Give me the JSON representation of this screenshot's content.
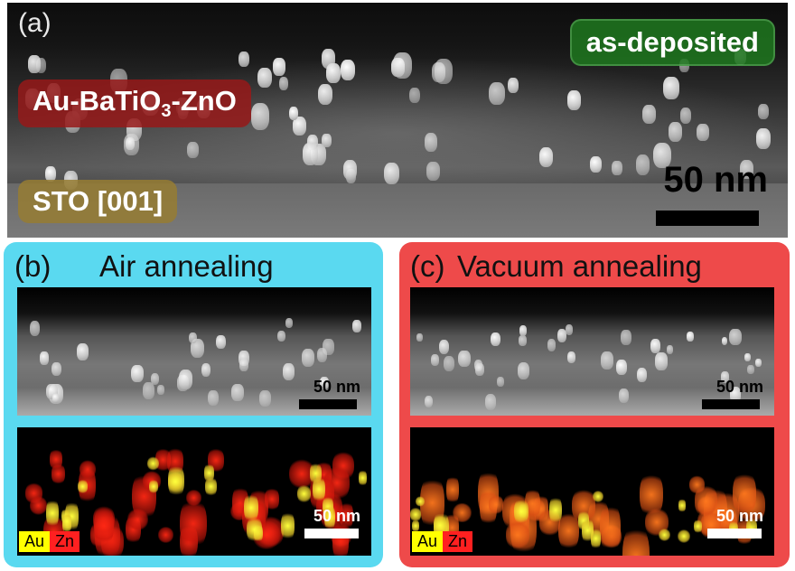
{
  "panel_a": {
    "label": "(a)",
    "state_tag": "as-deposited",
    "film_tag": "Au-BaTiO",
    "film_tag_sub": "3",
    "film_tag_suffix": "-ZnO",
    "substrate_tag": "STO [001]",
    "scale_bar": "50 nm"
  },
  "panel_b": {
    "label": "(b)",
    "title": "Air annealing",
    "tem_scale_bar": "50 nm",
    "eds_scale_bar": "50 nm",
    "legend": [
      {
        "name": "Au",
        "color": "#ffff00"
      },
      {
        "name": "Zn",
        "color": "#ff2020"
      }
    ]
  },
  "panel_c": {
    "label": "(c)",
    "title": "Vacuum annealing",
    "tem_scale_bar": "50 nm",
    "eds_scale_bar": "50 nm",
    "legend": [
      {
        "name": "Au",
        "color": "#ffff00"
      },
      {
        "name": "Zn",
        "color": "#ff2020"
      }
    ]
  },
  "colors": {
    "air_frame": "#5ad9f0",
    "vacuum_frame": "#ee4a4a",
    "as_deposited_tag": "#1e781e",
    "film_tag": "#961919",
    "substrate_tag": "#967d32"
  }
}
